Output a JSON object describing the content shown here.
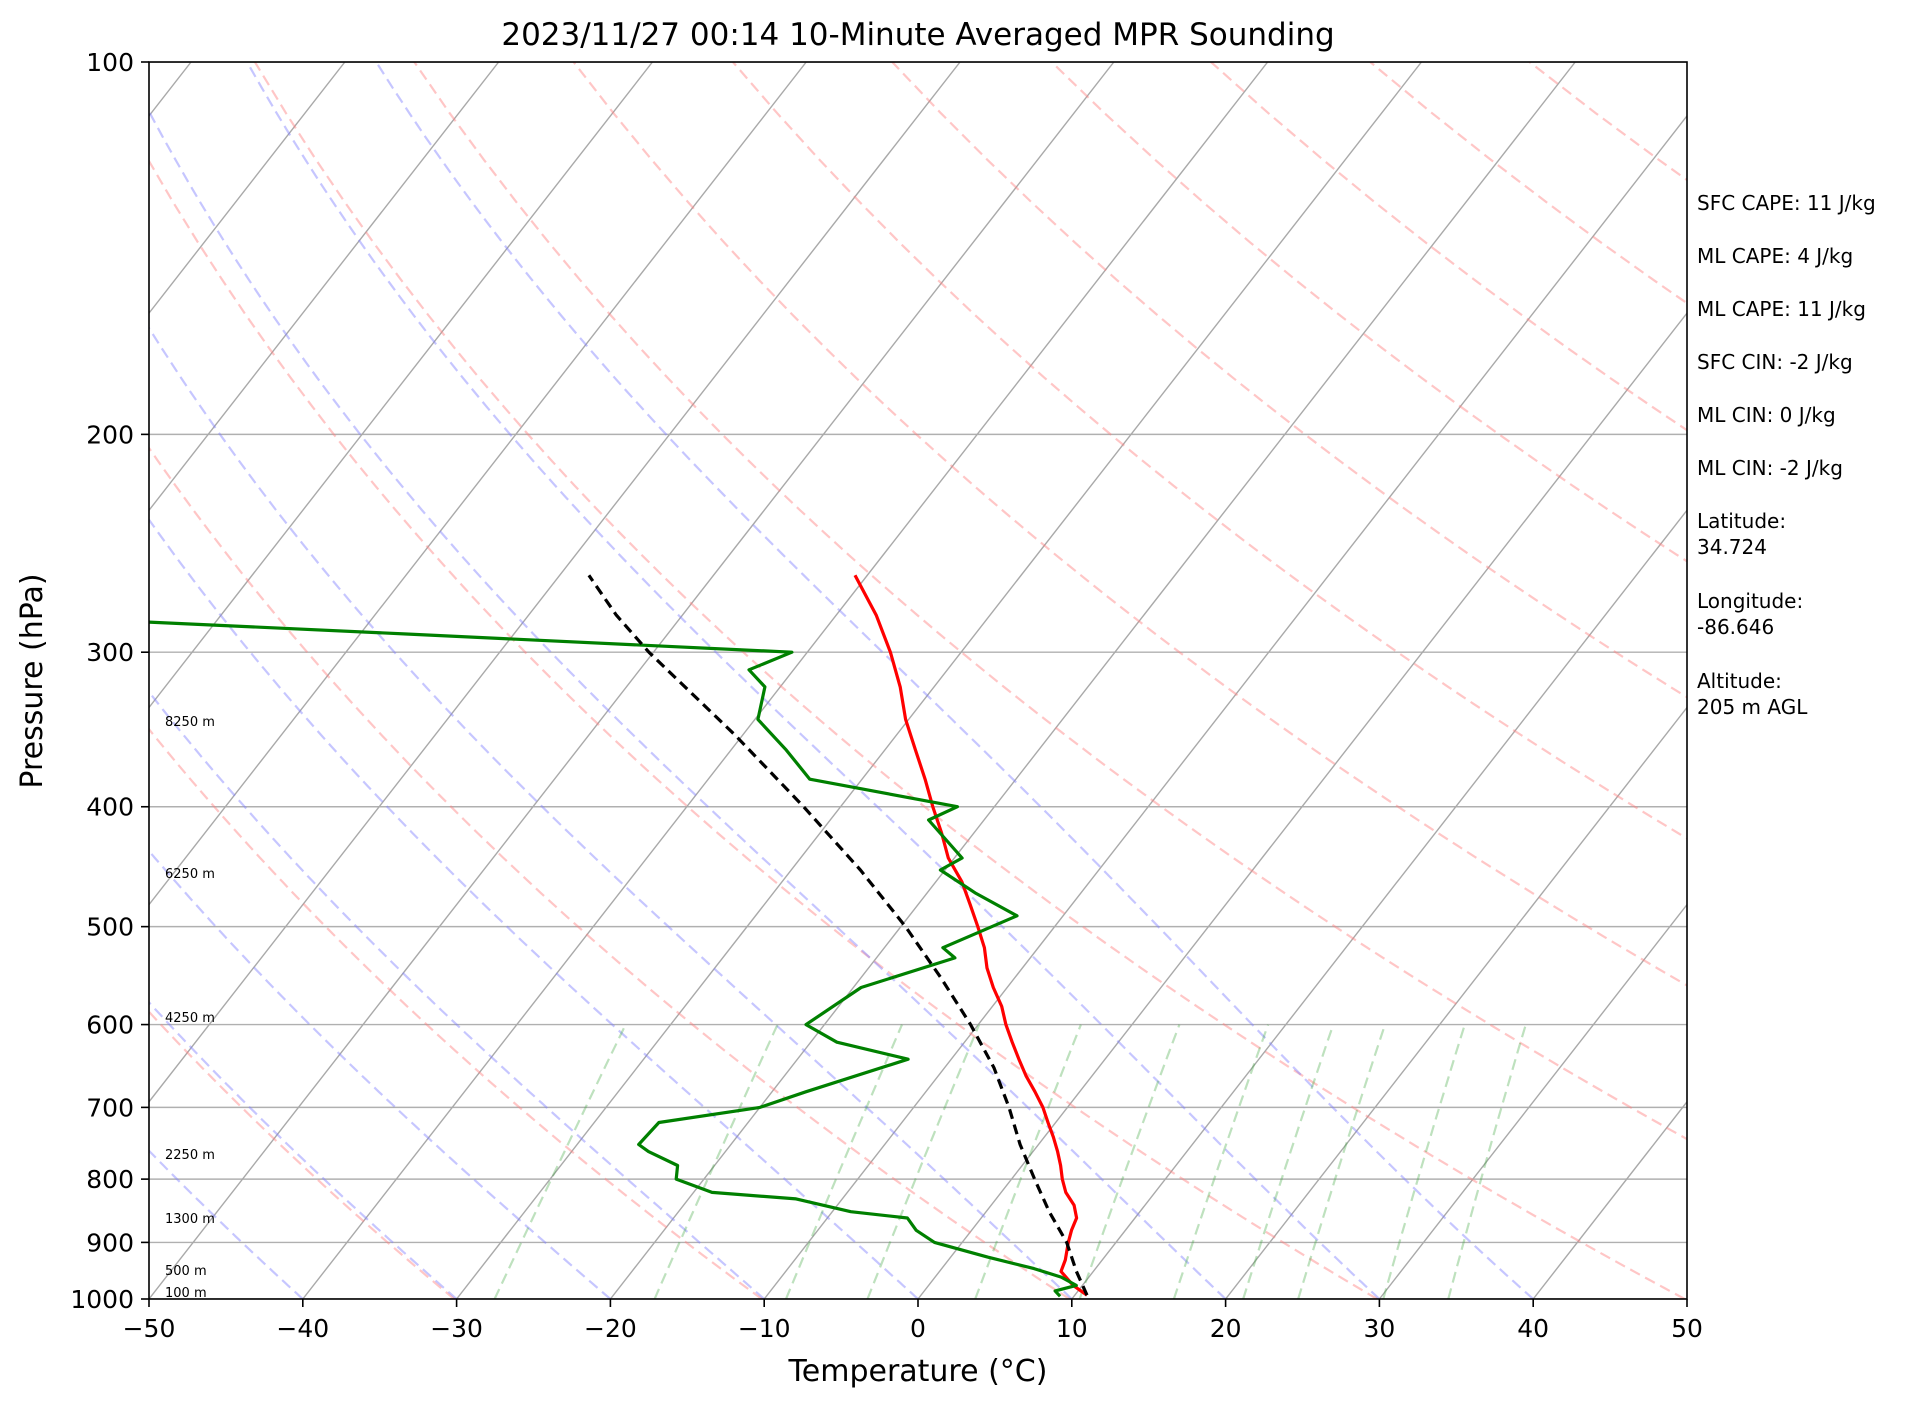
{
  "chart_data": {
    "type": "line",
    "title": "2023/11/27 00:14 10-Minute Averaged MPR Sounding",
    "xlabel": "Temperature (°C)",
    "ylabel": "Pressure (hPa)",
    "xlim": [
      -50,
      50
    ],
    "ylim": [
      1000,
      100
    ],
    "y_scale": "log",
    "skew": "skew-T",
    "grid": true,
    "x_ticks": [
      "−50",
      "−40",
      "−30",
      "−20",
      "−10",
      "0",
      "10",
      "20",
      "30",
      "40",
      "50"
    ],
    "y_ticks": [
      "100",
      "200",
      "300",
      "400",
      "500",
      "600",
      "700",
      "800",
      "900",
      "1000"
    ],
    "height_labels": [
      "8250 m",
      "6250 m",
      "4250 m",
      "2250 m",
      "1300 m",
      "500 m",
      "100 m"
    ],
    "stats": [
      "SFC CAPE: 11 J/kg",
      "ML CAPE: 4 J/kg",
      "ML CAPE: 11 J/kg",
      "SFC CIN: -2 J/kg",
      "ML CIN: 0 J/kg",
      "ML CIN: -2 J/kg",
      "Latitude:\n34.724",
      "Longitude:\n-86.646",
      "Altitude:\n205 m AGL"
    ],
    "series": [
      {
        "kind": "temperature",
        "color": "#ff0000",
        "pressure": [
          993,
          975,
          950,
          930,
          900,
          880,
          860,
          840,
          820,
          800,
          780,
          760,
          740,
          720,
          700,
          680,
          660,
          640,
          620,
          600,
          580,
          560,
          540,
          520,
          500,
          480,
          460,
          440,
          420,
          400,
          380,
          360,
          340,
          320,
          300,
          280,
          260
        ],
        "temperature": [
          10.8,
          9.4,
          7.9,
          7.6,
          6.9,
          6.5,
          6.2,
          5.4,
          4.2,
          3.3,
          2.5,
          1.6,
          0.6,
          -0.5,
          -1.6,
          -2.9,
          -4.3,
          -5.6,
          -6.9,
          -8.2,
          -9.4,
          -10.9,
          -12.3,
          -13.5,
          -15.0,
          -16.6,
          -18.3,
          -20.4,
          -22.1,
          -24.0,
          -25.9,
          -28.0,
          -30.2,
          -32.2,
          -34.6,
          -37.4,
          -40.8
        ]
      },
      {
        "kind": "dewpoint",
        "color": "#008000",
        "pressure": [
          995,
          985,
          975,
          960,
          945,
          925,
          900,
          880,
          860,
          850,
          830,
          820,
          800,
          780,
          760,
          750,
          720,
          700,
          680,
          640,
          620,
          600,
          560,
          530,
          520,
          490,
          470,
          450,
          440,
          410,
          400,
          380,
          360,
          340,
          320,
          310,
          300,
          290,
          280
        ],
        "temperature": [
          9.1,
          8.5,
          9.6,
          8.2,
          6.0,
          2.4,
          -1.8,
          -3.6,
          -4.8,
          -8.8,
          -13.0,
          -18.8,
          -21.8,
          -22.4,
          -25.0,
          -26.0,
          -25.8,
          -20.0,
          -17.8,
          -12.8,
          -18.3,
          -21.2,
          -19.5,
          -14.9,
          -16.2,
          -13.0,
          -16.8,
          -20.3,
          -19.5,
          -23.6,
          -22.4,
          -33.4,
          -36.4,
          -39.8,
          -41.0,
          -42.9,
          -41.0,
          -67.0,
          -94.5
        ]
      },
      {
        "kind": "parcel",
        "color": "#000000",
        "pressure": [
          993,
          950,
          900,
          850,
          800,
          750,
          700,
          650,
          600,
          550,
          500,
          450,
          400,
          350,
          300,
          280,
          260
        ],
        "temperature": [
          10.8,
          8.9,
          6.8,
          4.1,
          1.5,
          -1.2,
          -3.8,
          -6.8,
          -10.5,
          -14.8,
          -19.7,
          -25.5,
          -32.4,
          -40.5,
          -50.3,
          -54.3,
          -58.1
        ]
      }
    ]
  }
}
